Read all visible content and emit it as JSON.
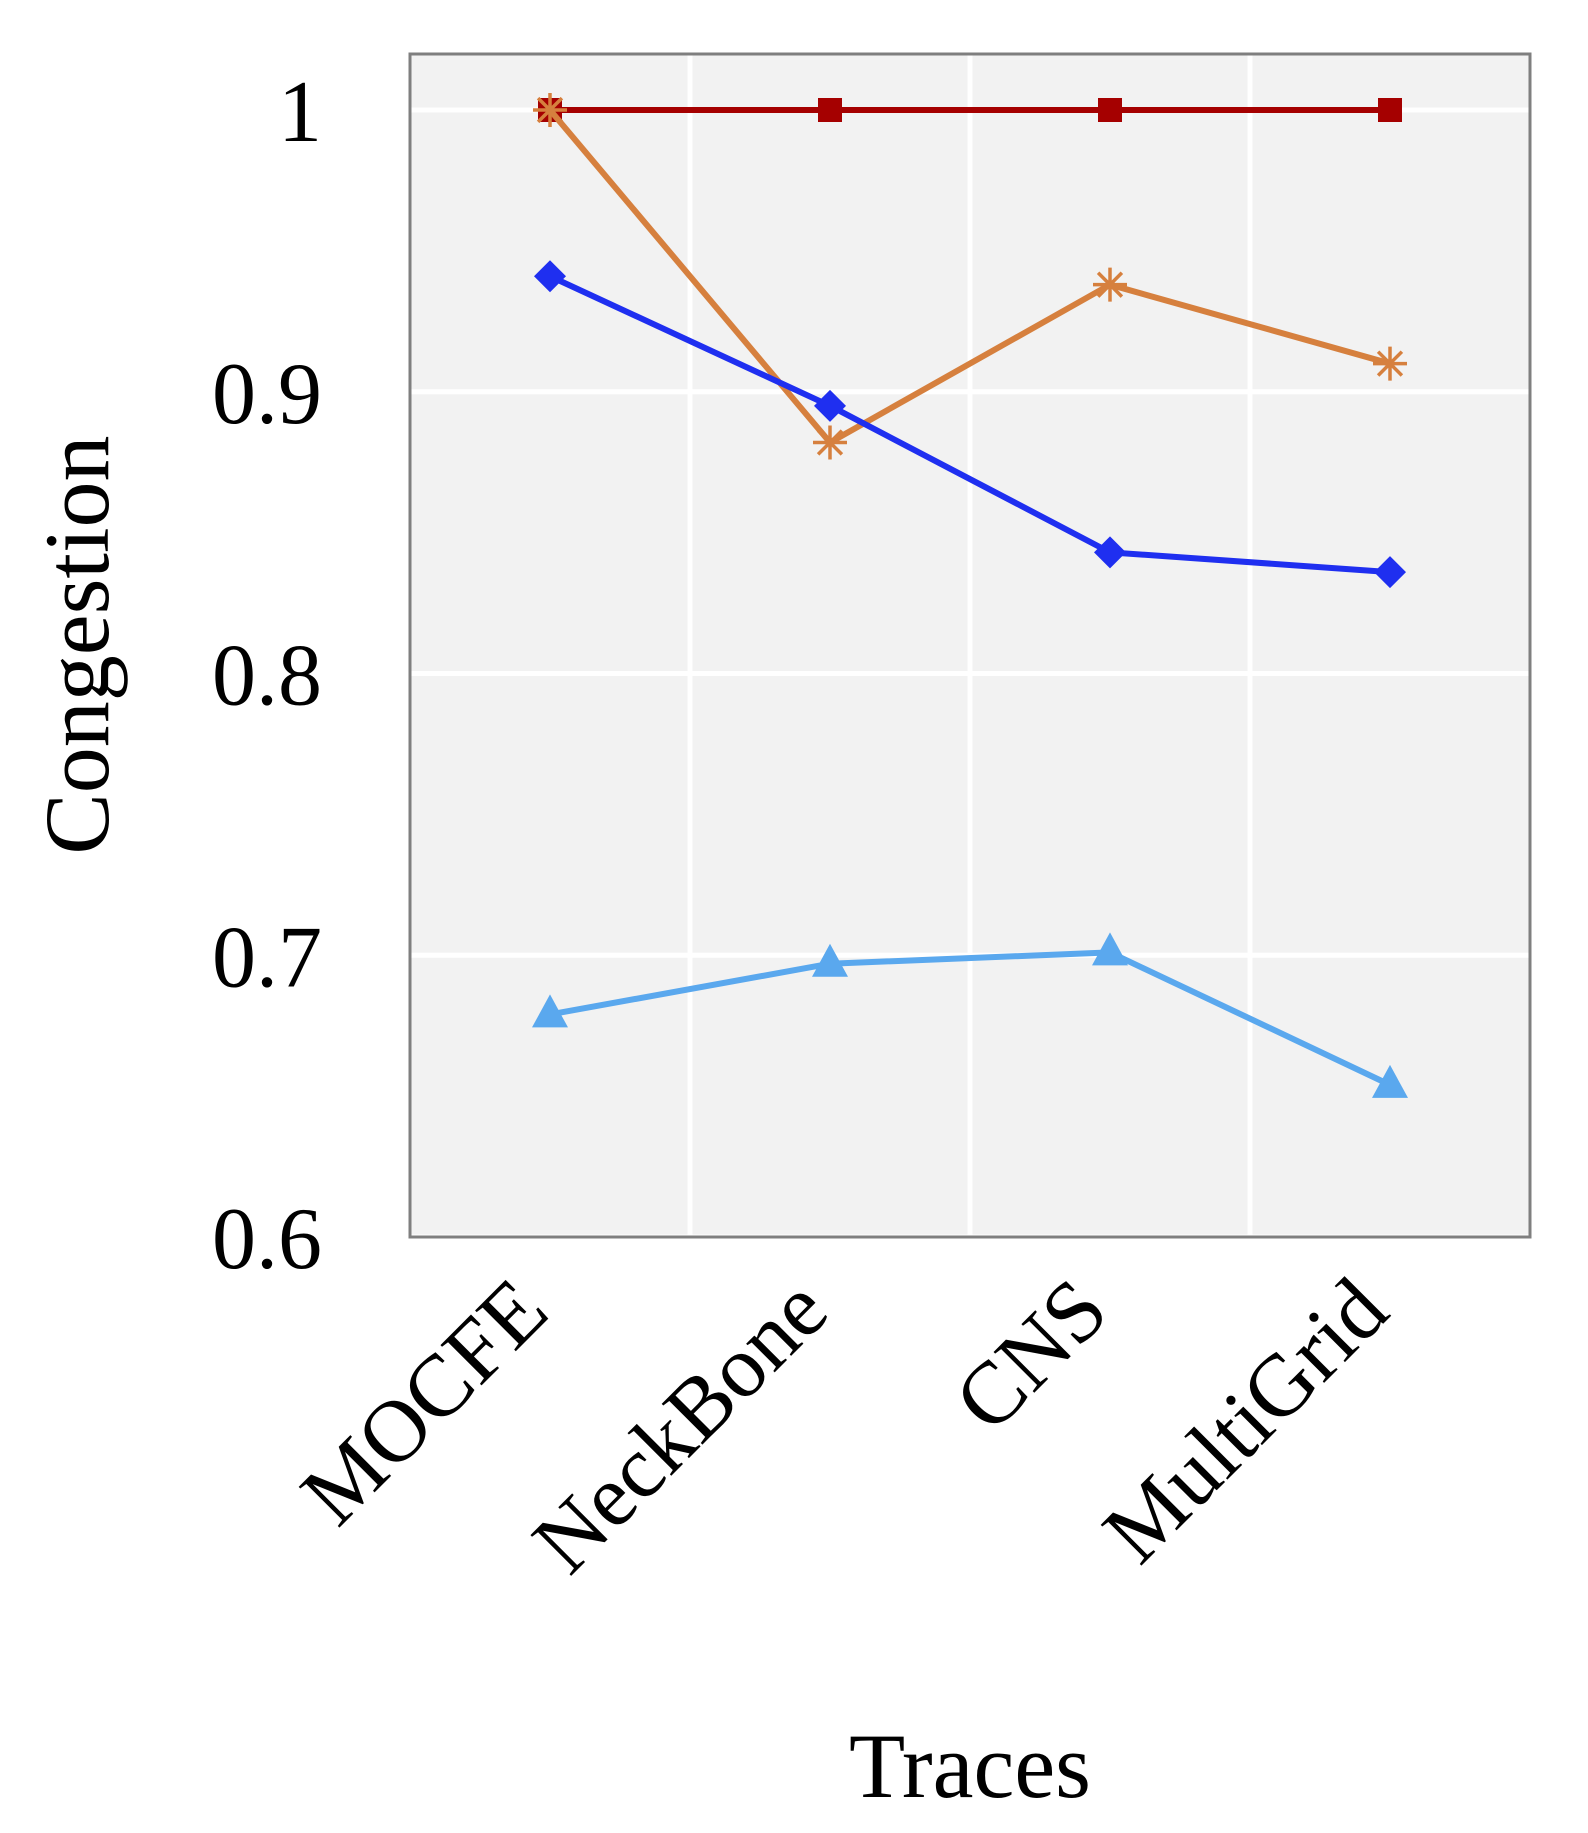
{
  "chart_data": {
    "type": "line",
    "title": "",
    "xlabel": "Traces",
    "ylabel": "Congestion",
    "categories": [
      "MOCFE",
      "NeckBone",
      "CNS",
      "MultiGrid"
    ],
    "ylim": [
      0.6,
      1.0
    ],
    "yticks": [
      "0.6",
      "0.7",
      "0.8",
      "0.9",
      "1"
    ],
    "grid": true,
    "legend": "none",
    "series": [
      {
        "name": "series-dark-red",
        "color": "#a50000",
        "marker": "square",
        "values": [
          1.0,
          1.0,
          1.0,
          1.0
        ]
      },
      {
        "name": "series-orange",
        "color": "#d6803e",
        "marker": "asterisk",
        "values": [
          1.0,
          0.882,
          0.938,
          0.91
        ]
      },
      {
        "name": "series-blue",
        "color": "#1f2ff0",
        "marker": "diamond",
        "values": [
          0.941,
          0.895,
          0.843,
          0.836
        ]
      },
      {
        "name": "series-light-blue",
        "color": "#5aa8ee",
        "marker": "triangle",
        "values": [
          0.679,
          0.697,
          0.701,
          0.654
        ]
      }
    ]
  }
}
